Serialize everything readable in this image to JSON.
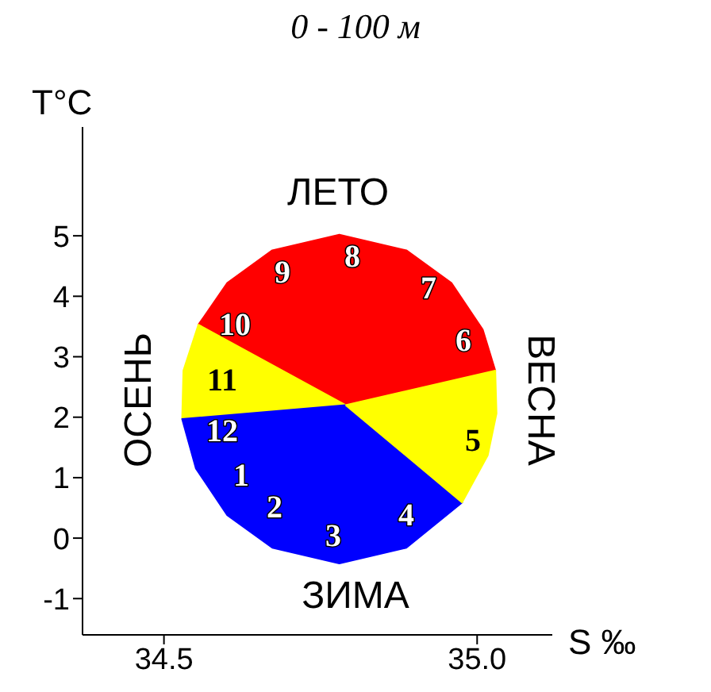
{
  "chart_data": {
    "type": "area",
    "title": "0 - 100 м",
    "xlabel": "S ‰",
    "ylabel": "T°C",
    "xlim": [
      34.37,
      35.12
    ],
    "ylim": [
      -1.6,
      6.8
    ],
    "xticks": [
      34.5,
      {
        "value": 35,
        "label": "35.0"
      }
    ],
    "yticks": [
      -1,
      0,
      1,
      2,
      3,
      4,
      5
    ],
    "grid": false,
    "series": [
      {
        "color": "#ff0000",
        "x": [
          34.79,
          35.029,
          35.009,
          34.959,
          34.887,
          34.78,
          34.673,
          34.601,
          34.555
        ],
        "values": [
          2.2,
          2.77,
          3.45,
          4.22,
          4.76,
          5.02,
          4.76,
          4.22,
          3.53
        ]
      },
      {
        "color": "#ffff00",
        "x": [
          34.79,
          34.555,
          34.531,
          34.529
        ],
        "values": [
          2.2,
          3.53,
          2.77,
          1.97
        ]
      },
      {
        "color": "#0000ff",
        "x": [
          34.79,
          34.529,
          34.551,
          34.601,
          34.673,
          34.78,
          34.887,
          34.976
        ],
        "values": [
          2.2,
          1.97,
          1.15,
          0.38,
          -0.16,
          -0.42,
          -0.16,
          0.59
        ]
      },
      {
        "color": "#ffff00",
        "x": [
          34.79,
          34.976,
          35.017,
          35.031,
          35.029
        ],
        "values": [
          2.2,
          0.59,
          1.37,
          2.06,
          2.77
        ]
      }
    ],
    "annotations": [
      "1",
      "2",
      "3",
      "4",
      "5",
      "6",
      "7",
      "8",
      "9",
      "10",
      "11",
      "12",
      "ЛЕТО",
      "ЗИМА",
      "ОСЕНЬ",
      "ВЕСНА"
    ]
  }
}
